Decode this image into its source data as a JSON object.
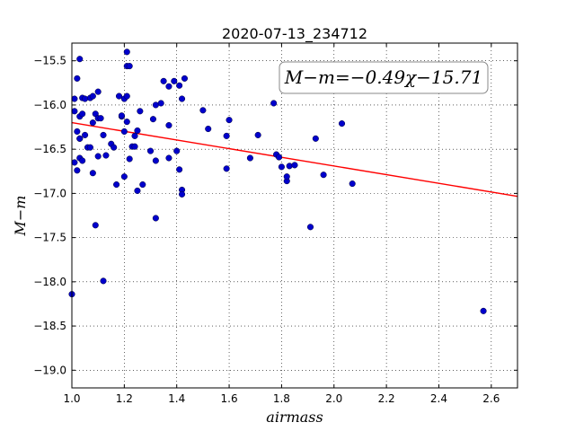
{
  "chart_data": {
    "type": "scatter",
    "title": "2020-07-13_234712",
    "xlabel": "airmass",
    "ylabel": "M−m",
    "xlim": [
      1.0,
      2.7
    ],
    "ylim": [
      -19.2,
      -15.3
    ],
    "y_inverted": true,
    "xticks": [
      1.0,
      1.2,
      1.4,
      1.6,
      1.8,
      2.0,
      2.2,
      2.4,
      2.6
    ],
    "xtick_labels": [
      "1.0",
      "1.2",
      "1.4",
      "1.6",
      "1.8",
      "2.0",
      "2.2",
      "2.4",
      "2.6"
    ],
    "yticks": [
      -15.5,
      -16.0,
      -16.5,
      -17.0,
      -17.5,
      -18.0,
      -18.5,
      -19.0
    ],
    "ytick_labels": [
      "−15.5",
      "−16.0",
      "−16.5",
      "−17.0",
      "−17.5",
      "−18.0",
      "−18.5",
      "−19.0"
    ],
    "grid": true,
    "annotation": "M−m=−0.49χ−15.71",
    "fit_line": {
      "slope": -0.49,
      "intercept": -15.71,
      "color": "#ff0000"
    },
    "marker_color": "#0000cc",
    "points": [
      [
        1.0,
        -18.14
      ],
      [
        1.01,
        -16.65
      ],
      [
        1.01,
        -16.07
      ],
      [
        1.01,
        -15.93
      ],
      [
        1.02,
        -16.3
      ],
      [
        1.02,
        -16.74
      ],
      [
        1.02,
        -15.7
      ],
      [
        1.03,
        -16.38
      ],
      [
        1.03,
        -16.38
      ],
      [
        1.03,
        -16.6
      ],
      [
        1.03,
        -16.13
      ],
      [
        1.03,
        -15.48
      ],
      [
        1.04,
        -16.1
      ],
      [
        1.04,
        -15.92
      ],
      [
        1.04,
        -16.63
      ],
      [
        1.05,
        -16.34
      ],
      [
        1.05,
        -15.93
      ],
      [
        1.06,
        -16.48
      ],
      [
        1.07,
        -16.48
      ],
      [
        1.07,
        -15.92
      ],
      [
        1.08,
        -16.77
      ],
      [
        1.08,
        -16.2
      ],
      [
        1.08,
        -15.9
      ],
      [
        1.09,
        -16.1
      ],
      [
        1.09,
        -17.36
      ],
      [
        1.1,
        -16.58
      ],
      [
        1.1,
        -16.15
      ],
      [
        1.1,
        -15.85
      ],
      [
        1.11,
        -16.15
      ],
      [
        1.12,
        -16.34
      ],
      [
        1.12,
        -17.99
      ],
      [
        1.13,
        -16.57
      ],
      [
        1.15,
        -16.44
      ],
      [
        1.16,
        -16.48
      ],
      [
        1.17,
        -16.9
      ],
      [
        1.18,
        -15.9
      ],
      [
        1.19,
        -16.13
      ],
      [
        1.19,
        -16.12
      ],
      [
        1.2,
        -16.81
      ],
      [
        1.2,
        -15.93
      ],
      [
        1.2,
        -16.3
      ],
      [
        1.21,
        -16.19
      ],
      [
        1.21,
        -15.56
      ],
      [
        1.21,
        -15.4
      ],
      [
        1.21,
        -15.9
      ],
      [
        1.22,
        -15.56
      ],
      [
        1.22,
        -16.61
      ],
      [
        1.23,
        -16.47
      ],
      [
        1.24,
        -16.35
      ],
      [
        1.24,
        -16.47
      ],
      [
        1.25,
        -16.29
      ],
      [
        1.25,
        -16.97
      ],
      [
        1.26,
        -16.07
      ],
      [
        1.27,
        -16.9
      ],
      [
        1.3,
        -16.52
      ],
      [
        1.31,
        -16.16
      ],
      [
        1.32,
        -16.0
      ],
      [
        1.32,
        -16.63
      ],
      [
        1.32,
        -17.28
      ],
      [
        1.34,
        -15.98
      ],
      [
        1.35,
        -15.73
      ],
      [
        1.37,
        -15.79
      ],
      [
        1.37,
        -16.6
      ],
      [
        1.37,
        -16.23
      ],
      [
        1.39,
        -15.73
      ],
      [
        1.4,
        -16.52
      ],
      [
        1.41,
        -15.78
      ],
      [
        1.41,
        -16.73
      ],
      [
        1.42,
        -16.96
      ],
      [
        1.42,
        -17.01
      ],
      [
        1.42,
        -15.93
      ],
      [
        1.43,
        -15.7
      ],
      [
        1.5,
        -16.06
      ],
      [
        1.52,
        -16.27
      ],
      [
        1.59,
        -16.35
      ],
      [
        1.59,
        -16.72
      ],
      [
        1.6,
        -16.17
      ],
      [
        1.68,
        -16.6
      ],
      [
        1.71,
        -16.34
      ],
      [
        1.77,
        -15.98
      ],
      [
        1.78,
        -16.56
      ],
      [
        1.79,
        -16.59
      ],
      [
        1.8,
        -16.7
      ],
      [
        1.82,
        -16.86
      ],
      [
        1.82,
        -16.81
      ],
      [
        1.83,
        -16.69
      ],
      [
        1.85,
        -16.68
      ],
      [
        1.91,
        -17.38
      ],
      [
        1.93,
        -16.38
      ],
      [
        1.96,
        -16.79
      ],
      [
        2.03,
        -16.21
      ],
      [
        2.07,
        -16.89
      ],
      [
        2.57,
        -18.33
      ]
    ]
  }
}
